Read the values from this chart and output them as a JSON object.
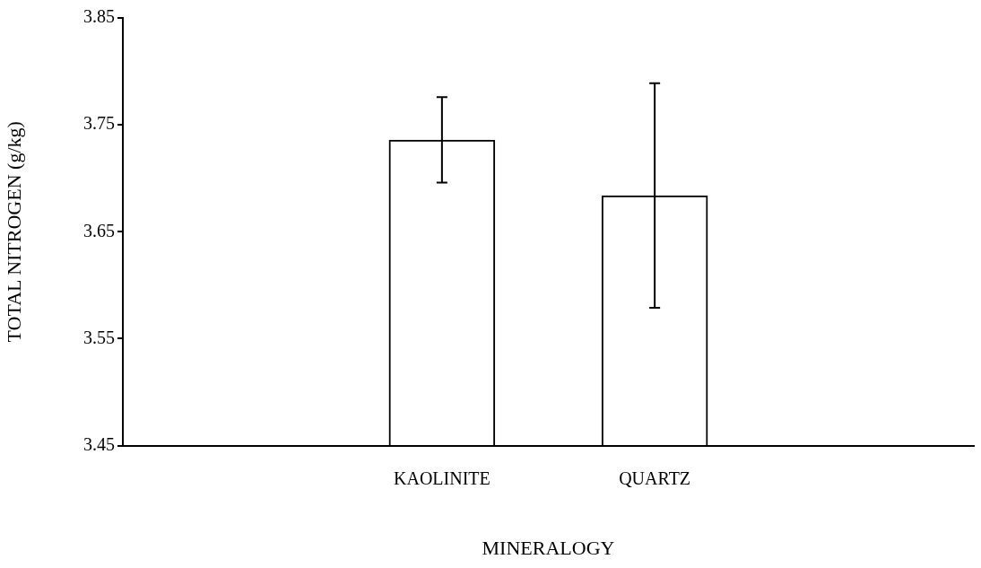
{
  "chart_data": {
    "type": "bar",
    "xlabel": "MINERALOGY",
    "ylabel": "TOTAL NITROGEN (g/kg)",
    "categories": [
      null,
      "KAOLINITE",
      "QUARTZ",
      null
    ],
    "values": [
      null,
      3.736,
      3.684,
      null
    ],
    "errors": [
      null,
      0.04,
      0.105,
      null
    ],
    "color": "#000000",
    "ylim": [
      3.45,
      3.85
    ],
    "yticks": [
      3.45,
      3.55,
      3.65,
      3.75,
      3.85
    ],
    "grid": false,
    "legend": false
  }
}
